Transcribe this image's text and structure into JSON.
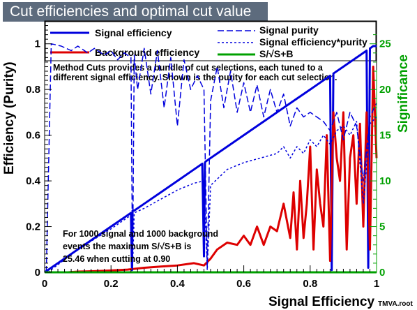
{
  "chart_data": {
    "type": "line",
    "title": "Cut efficiencies and optimal cut value",
    "xlabel": "Signal Efficiency",
    "ylabel": "Efficiency (Purity)",
    "y2label": "Significance",
    "source_label": "TMVA.root",
    "xlim": [
      0,
      1
    ],
    "ylim": [
      0,
      1.1
    ],
    "y2lim": [
      0,
      27.5
    ],
    "x_ticks": [
      "0",
      "0.2",
      "0.4",
      "0.6",
      "0.8",
      "1"
    ],
    "y_ticks": [
      "0",
      "0.2",
      "0.4",
      "0.6",
      "0.8",
      "1"
    ],
    "y2_ticks": [
      "0",
      "5",
      "10",
      "15",
      "20",
      "25"
    ],
    "legend_position": "top",
    "colors": {
      "signal_efficiency": "#0000dd",
      "background_efficiency": "#dd0000",
      "signal_purity": "#0000dd",
      "signal_eff_purity": "#0000dd",
      "significance": "#00a000",
      "significance_axis": "#00a000",
      "title_background": "#5d6b7d"
    },
    "legend": {
      "signal_efficiency": "Signal efficiency",
      "background_efficiency": "Background efficiency",
      "signal_purity": "Signal purity",
      "signal_eff_purity": "Signal efficiency*purity",
      "significance": "S/√S+B"
    },
    "description_lines": [
      "Method Cuts provides a bundle of cut selections, each tuned to a",
      "different signal efficiency. Shown is the purity for each cut selection."
    ],
    "result_lines": [
      "For 1000 signal and 1000 background",
      "events the maximum S/√S+B is",
      "25.46 when cutting at 0.90"
    ],
    "series": [
      {
        "name": "Signal efficiency",
        "style": "solid",
        "x": [
          0,
          0.05,
          0.1,
          0.15,
          0.2,
          0.25,
          0.26,
          0.263,
          0.265,
          0.27,
          0.3,
          0.35,
          0.4,
          0.45,
          0.475,
          0.48,
          0.483,
          0.485,
          0.5,
          0.55,
          0.6,
          0.65,
          0.7,
          0.75,
          0.8,
          0.85,
          0.86,
          0.865,
          0.87,
          0.9,
          0.95,
          0.97,
          0.975,
          0.98,
          0.99,
          1.0
        ],
        "y": [
          0,
          0.05,
          0.1,
          0.15,
          0.2,
          0.25,
          0.26,
          0.01,
          0.27,
          0.27,
          0.3,
          0.35,
          0.4,
          0.45,
          0.475,
          0.07,
          0.48,
          0.485,
          0.5,
          0.55,
          0.6,
          0.65,
          0.7,
          0.75,
          0.8,
          0.85,
          0.86,
          0.01,
          0.87,
          0.9,
          0.95,
          0.97,
          0.02,
          0.98,
          0.99,
          0.99
        ]
      },
      {
        "name": "Background efficiency",
        "style": "solid",
        "x": [
          0.07,
          0.1,
          0.15,
          0.2,
          0.25,
          0.3,
          0.35,
          0.4,
          0.45,
          0.48,
          0.5,
          0.52,
          0.55,
          0.58,
          0.6,
          0.62,
          0.64,
          0.66,
          0.68,
          0.7,
          0.72,
          0.74,
          0.75,
          0.76,
          0.77,
          0.78,
          0.79,
          0.8,
          0.81,
          0.82,
          0.83,
          0.84,
          0.85,
          0.86,
          0.87,
          0.88,
          0.89,
          0.9,
          0.91,
          0.92,
          0.93,
          0.94,
          0.95,
          0.96,
          0.97,
          0.98,
          0.99,
          1.0
        ],
        "y": [
          0.0,
          0.003,
          0.005,
          0.008,
          0.012,
          0.02,
          0.025,
          0.03,
          0.04,
          0.03,
          0.06,
          0.1,
          0.13,
          0.12,
          0.16,
          0.12,
          0.2,
          0.12,
          0.2,
          0.18,
          0.3,
          0.15,
          0.35,
          0.1,
          0.4,
          0.15,
          0.3,
          0.55,
          0.1,
          0.45,
          0.3,
          0.2,
          0.6,
          0.05,
          0.7,
          0.5,
          0.4,
          0.7,
          0.1,
          0.5,
          0.6,
          0.3,
          0.65,
          0.2,
          0.7,
          0.1,
          0.9,
          0.5
        ]
      },
      {
        "name": "Signal purity",
        "style": "long-dash",
        "x": [
          0.005,
          0.02,
          0.05,
          0.08,
          0.1,
          0.13,
          0.15,
          0.18,
          0.2,
          0.22,
          0.24,
          0.26,
          0.265,
          0.27,
          0.28,
          0.3,
          0.32,
          0.34,
          0.36,
          0.38,
          0.4,
          0.42,
          0.44,
          0.46,
          0.48,
          0.49,
          0.5,
          0.52,
          0.54,
          0.56,
          0.58,
          0.6,
          0.62,
          0.64,
          0.66,
          0.68,
          0.7,
          0.72,
          0.74,
          0.76,
          0.78,
          0.8,
          0.82,
          0.84,
          0.86,
          0.88,
          0.9,
          0.92,
          0.94,
          0.96,
          0.98,
          1.0
        ],
        "y": [
          0.0,
          1.0,
          0.99,
          0.97,
          0.99,
          0.96,
          0.98,
          0.95,
          0.97,
          0.93,
          0.96,
          0.94,
          0.01,
          0.95,
          0.8,
          0.98,
          0.78,
          0.97,
          0.72,
          0.94,
          0.64,
          0.93,
          0.8,
          0.86,
          0.8,
          0.02,
          0.75,
          0.9,
          0.72,
          0.88,
          0.7,
          0.83,
          0.7,
          0.82,
          0.68,
          0.8,
          0.7,
          0.78,
          0.64,
          0.72,
          0.68,
          0.7,
          0.68,
          0.66,
          0.62,
          0.7,
          0.58,
          0.7,
          0.64,
          0.4,
          0.68,
          0.74
        ]
      },
      {
        "name": "Signal efficiency*purity",
        "style": "short-dash",
        "x": [
          0.01,
          0.1,
          0.2,
          0.25,
          0.26,
          0.265,
          0.27,
          0.3,
          0.35,
          0.4,
          0.45,
          0.48,
          0.49,
          0.5,
          0.55,
          0.6,
          0.65,
          0.7,
          0.72,
          0.74,
          0.76,
          0.78,
          0.8,
          0.82,
          0.84,
          0.86,
          0.88,
          0.9,
          0.92,
          0.94,
          0.96,
          0.98,
          1.0
        ],
        "y": [
          0.0,
          0.1,
          0.19,
          0.24,
          0.25,
          0.01,
          0.26,
          0.28,
          0.32,
          0.36,
          0.39,
          0.4,
          0.01,
          0.38,
          0.45,
          0.48,
          0.5,
          0.52,
          0.55,
          0.5,
          0.55,
          0.52,
          0.58,
          0.55,
          0.6,
          0.56,
          0.62,
          0.64,
          0.6,
          0.66,
          0.3,
          0.65,
          0.68
        ]
      },
      {
        "name": "S/√S+B",
        "style": "solid",
        "axis": "right",
        "x": [
          0,
          1
        ],
        "y": [
          0,
          0
        ]
      }
    ]
  }
}
